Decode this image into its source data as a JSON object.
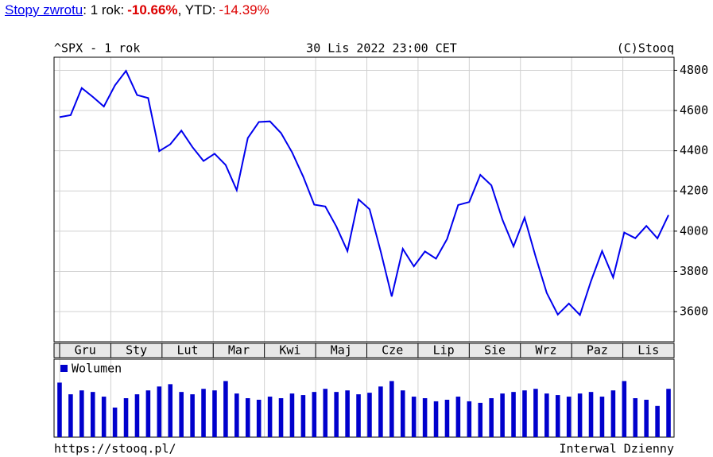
{
  "header": {
    "link": "Stopy zwrotu",
    "period_label": ": 1 rok:",
    "period_return": "-10.66%",
    "ytd_label": ", YTD:",
    "ytd_return": "-14.39%"
  },
  "chart_data": [
    {
      "type": "line",
      "title": "^SPX - 1 rok",
      "subtitle": "30 Lis 2022 23:00 CET",
      "source": "(C)Stooq",
      "month_labels": [
        "Gru",
        "Sty",
        "Lut",
        "Mar",
        "Kwi",
        "Maj",
        "Cze",
        "Lip",
        "Sie",
        "Wrz",
        "Paz",
        "Lis"
      ],
      "color": "#0000ee",
      "values": [
        4567,
        4577,
        4712,
        4668,
        4620,
        4725,
        4797,
        4677,
        4662,
        4398,
        4432,
        4500,
        4418,
        4349,
        4385,
        4329,
        4204,
        4463,
        4543,
        4546,
        4488,
        4392,
        4272,
        4132,
        4123,
        4023,
        3901,
        4158,
        4109,
        3900,
        3675,
        3912,
        3825,
        3899,
        3863,
        3961,
        4130,
        4145,
        4280,
        4228,
        4057,
        3924,
        4067,
        3873,
        3693,
        3585,
        3640,
        3583,
        3752,
        3901,
        3770,
        3993,
        3965,
        4026,
        3964,
        4080
      ],
      "ylim": [
        3450,
        4865
      ],
      "yticks": [
        3600,
        3800,
        4000,
        4200,
        4400,
        4600,
        4800
      ],
      "grid": true
    },
    {
      "type": "bar",
      "series": [
        {
          "name": "Wolumen",
          "color": "#0000cc",
          "values": [
            70,
            55,
            60,
            58,
            52,
            38,
            50,
            55,
            60,
            65,
            68,
            58,
            55,
            62,
            60,
            72,
            56,
            50,
            48,
            52,
            50,
            56,
            54,
            58,
            62,
            58,
            60,
            55,
            57,
            65,
            72,
            60,
            52,
            50,
            46,
            48,
            52,
            46,
            44,
            50,
            56,
            58,
            60,
            62,
            56,
            54,
            52,
            56,
            58,
            52,
            60,
            72,
            50,
            48,
            40,
            62
          ]
        }
      ],
      "ylim": [
        0,
        100
      ],
      "footer_left": "https://stooq.pl/",
      "footer_right": "Interwal Dzienny"
    }
  ]
}
